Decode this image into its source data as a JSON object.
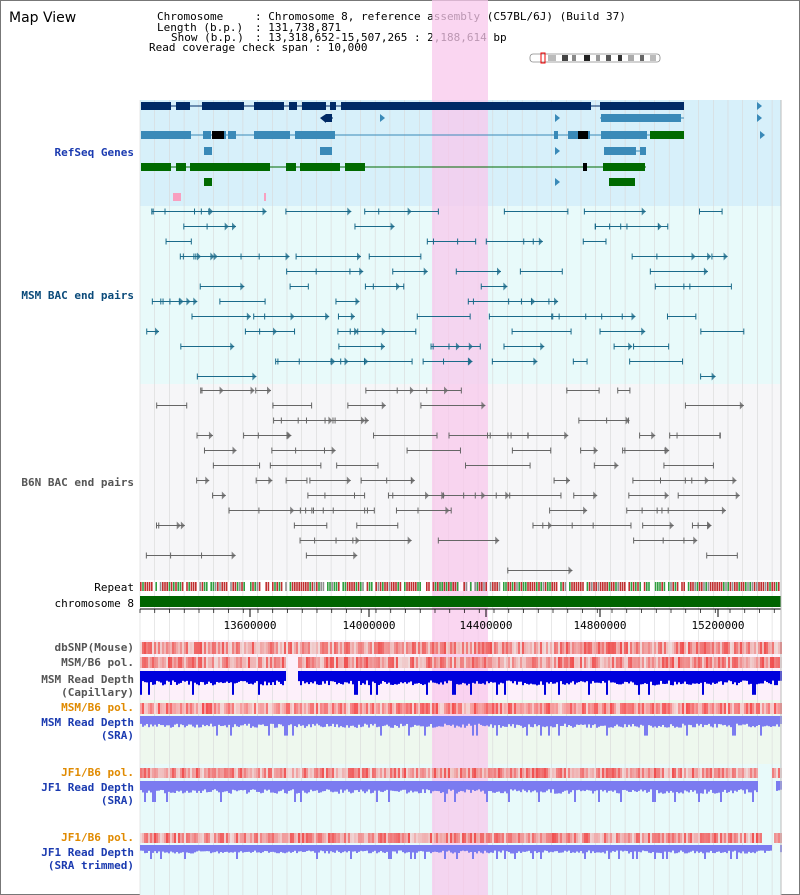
{
  "window": {
    "title": "Map View"
  },
  "info": {
    "chromosome_key": "Chromosome",
    "chromosome_val": ": Chromosome 8, reference assembly (C57BL/6J) (Build 37)",
    "length_key": "Length (b.p.)",
    "length_val": ": 131,738,871",
    "show_key": "Show (b.p.)",
    "show_val": ": 13,318,652-15,507,265 : 2,188,614 bp",
    "coverage": "Read coverage check span : 10,000"
  },
  "tracks": {
    "refseq": "RefSeq Genes",
    "msm_bac": "MSM BAC end pairs",
    "b6n_bac": "B6N BAC end pairs",
    "repeat": "Repeat",
    "chromosome": "chromosome 8",
    "dbsnp": "dbSNP(Mouse)",
    "msm_pol": "MSM/B6 pol.",
    "msm_depth_cap_1": "MSM Read Depth",
    "msm_depth_cap_2": "(Capillary)",
    "msm_pol_sra": "MSM/B6 pol.",
    "msm_depth_sra_1": "MSM Read Depth",
    "msm_depth_sra_2": "(SRA)",
    "jf1_pol": "JF1/B6 pol.",
    "jf1_depth_1": "JF1 Read Depth",
    "jf1_depth_2": "(SRA)",
    "jf1_pol_t": "JF1/B6 pol.",
    "jf1_depth_t_1": "JF1 Read Depth",
    "jf1_depth_t_2": "(SRA trimmed)"
  },
  "axis": {
    "ticks": [
      "13600000",
      "14000000",
      "14400000",
      "14800000",
      "15200000"
    ]
  },
  "colors": {
    "refseq_bg": "#d7f0fa",
    "bac_bg": "#e8fafa",
    "b6n_bg": "#f6f6f8",
    "highlight": "#f8c8ec",
    "gene_dark": "#002a66",
    "gene_mid": "#3a8ab8",
    "gene_green": "#006a00",
    "msm_line": "#1a6a8a",
    "b6n_line": "#666666",
    "chrom_green": "#006400",
    "pol_red": "#ee3030",
    "depth_blue": "#0000dd",
    "depth_violet": "#7b7bf0",
    "label_blue": "#1a3ab0",
    "label_orange": "#e08a00",
    "label_msm": "#0a4a7a",
    "label_gray": "#555555"
  }
}
